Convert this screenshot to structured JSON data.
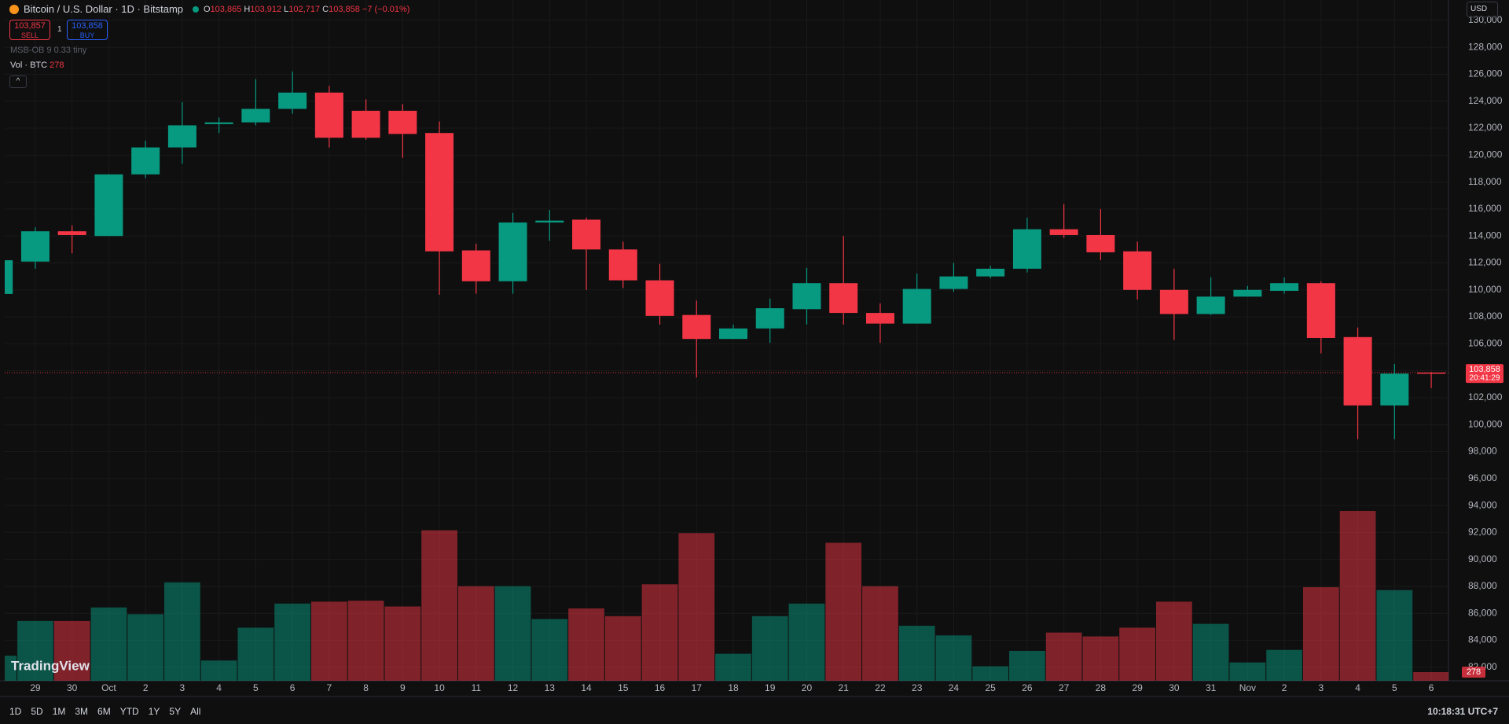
{
  "header": {
    "symbol": "Bitcoin / U.S. Dollar · 1D · Bitstamp",
    "open_label": "O",
    "open": "103,865",
    "high_label": "H",
    "high": "103,912",
    "low_label": "L",
    "low": "102,717",
    "close_label": "C",
    "close": "103,858",
    "change": "−7 (−0.01%)",
    "sell_price": "103,857",
    "sell": "SELL",
    "spread": "1",
    "buy_price": "103,858",
    "buy": "BUY",
    "indicator": "MSB-OB 9 0.33 tiny",
    "volume_label": "Vol · BTC",
    "currency": "USD"
  },
  "chart_data": {
    "type": "candlestick",
    "categories": [
      null,
      "29",
      "30",
      "Oct",
      "2",
      "3",
      "4",
      "5",
      "6",
      "7",
      "8",
      "9",
      "10",
      "11",
      "12",
      "13",
      "14",
      "15",
      "16",
      "17",
      "18",
      "19",
      "20",
      "21",
      "22",
      "23",
      "24",
      "25",
      "26",
      "27",
      "28",
      "29",
      "30",
      "31",
      "Nov",
      "2",
      "3",
      "4",
      "5",
      "6"
    ],
    "open": [
      109700,
      112100,
      114350,
      114000,
      118570,
      120570,
      122300,
      122430,
      123430,
      124640,
      123290,
      123290,
      121640,
      112930,
      110640,
      115000,
      115210,
      113000,
      110710,
      108140,
      106360,
      107140,
      108570,
      110500,
      108290,
      107500,
      110070,
      111000,
      111570,
      114500,
      114070,
      112860,
      110000,
      108210,
      109500,
      109930,
      110500,
      106500,
      101430,
      103865
    ],
    "high": [
      112400,
      114640,
      114790,
      118600,
      121070,
      123930,
      122790,
      125640,
      126210,
      125140,
      124140,
      123790,
      122500,
      113430,
      115710,
      115930,
      115360,
      113570,
      111930,
      109210,
      107430,
      109360,
      111640,
      114000,
      109000,
      111210,
      112000,
      111790,
      115360,
      116360,
      116000,
      113570,
      111570,
      110930,
      110290,
      110930,
      110640,
      107210,
      104500,
      103912
    ],
    "low": [
      109600,
      111570,
      112710,
      114000,
      118290,
      119360,
      121640,
      122210,
      123070,
      120570,
      121140,
      119790,
      109640,
      109720,
      109720,
      113640,
      110000,
      110140,
      107430,
      103500,
      106360,
      106070,
      107430,
      107430,
      106070,
      107500,
      109860,
      110860,
      111290,
      113860,
      112210,
      109290,
      106290,
      108140,
      109500,
      109720,
      105290,
      98930,
      98930,
      102717
    ],
    "close": [
      112200,
      114350,
      114070,
      118570,
      120570,
      122210,
      122430,
      123430,
      124640,
      121290,
      121290,
      121570,
      112860,
      110640,
      115000,
      115140,
      113000,
      110710,
      108070,
      106360,
      107140,
      108640,
      110500,
      108290,
      107500,
      110070,
      111000,
      111570,
      114500,
      114070,
      112790,
      110000,
      108210,
      109500,
      110000,
      110500,
      106430,
      101430,
      103790,
      103858
    ],
    "volume": [
      806,
      1922,
      1922,
      2356,
      2139,
      3162,
      651,
      1705,
      2480,
      2542,
      2573,
      2387,
      4836,
      3038,
      3038,
      1984,
      2325,
      2077,
      3100,
      4743,
      868,
      2077,
      2480,
      4433,
      3038,
      1767,
      1457,
      465,
      961,
      1550,
      1426,
      1705,
      2542,
      1829,
      589,
      992,
      3007,
      5456,
      2914,
      278
    ],
    "up_color": "#089981",
    "down_color": "#f23645",
    "ylim": [
      81000,
      130400
    ],
    "yticks": [
      {
        "value": 82000,
        "label": "82,000"
      },
      {
        "value": 84000,
        "label": "84,000"
      },
      {
        "value": 86000,
        "label": "86,000"
      },
      {
        "value": 88000,
        "label": "88,000"
      },
      {
        "value": 90000,
        "label": "90,000"
      },
      {
        "value": 92000,
        "label": "92,000"
      },
      {
        "value": 94000,
        "label": "94,000"
      },
      {
        "value": 96000,
        "label": "96,000"
      },
      {
        "value": 98000,
        "label": "98,000"
      },
      {
        "value": 100000,
        "label": "100,000"
      },
      {
        "value": 102000,
        "label": "102,000"
      },
      {
        "value": 104000,
        "label": "104,000"
      },
      {
        "value": 106000,
        "label": "106,000"
      },
      {
        "value": 108000,
        "label": "108,000"
      },
      {
        "value": 110000,
        "label": "110,000"
      },
      {
        "value": 112000,
        "label": "112,000"
      },
      {
        "value": 114000,
        "label": "114,000"
      },
      {
        "value": 116000,
        "label": "116,000"
      },
      {
        "value": 118000,
        "label": "118,000"
      },
      {
        "value": 120000,
        "label": "120,000"
      },
      {
        "value": 122000,
        "label": "122,000"
      },
      {
        "value": 124000,
        "label": "124,000"
      },
      {
        "value": 126000,
        "label": "126,000"
      },
      {
        "value": 128000,
        "label": "128,000"
      },
      {
        "value": 130000,
        "label": "130,000"
      }
    ],
    "grid": true,
    "last_price_label": "103,858",
    "countdown": "20:41:29"
  },
  "toolbar": {
    "ranges": [
      "1D",
      "5D",
      "1M",
      "3M",
      "6M",
      "YTD",
      "1Y",
      "5Y",
      "All"
    ],
    "time": "10:18:31 UTC+7",
    "brand": "TradingView"
  }
}
